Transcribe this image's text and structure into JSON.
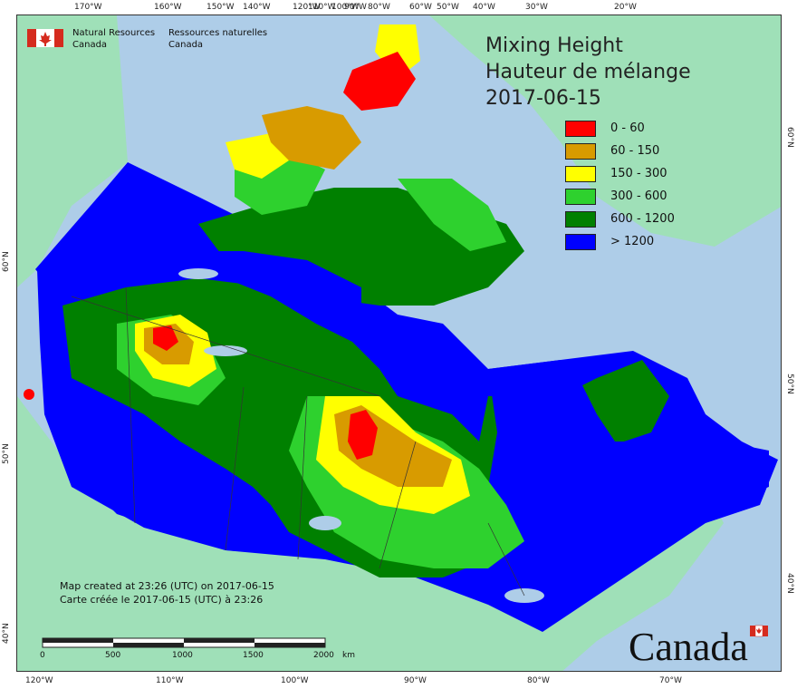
{
  "map": {
    "title_en": "Mixing Height",
    "title_fr": "Hauteur de mélange",
    "date": "2017-06-15",
    "legend": [
      {
        "label": "0 - 60",
        "color": "#ff0000"
      },
      {
        "label": "60 - 150",
        "color": "#d89b00"
      },
      {
        "label": "150 - 300",
        "color": "#ffff00"
      },
      {
        "label": "300 - 600",
        "color": "#2ed12e"
      },
      {
        "label": "600 - 1200",
        "color": "#008000"
      },
      {
        "label": "> 1200",
        "color": "#0000ff"
      }
    ],
    "ocean_color": "#aecde8",
    "land_color": "#9fe0b8"
  },
  "header": {
    "nrcan_en_line1": "Natural Resources",
    "nrcan_en_line2": "Canada",
    "nrcan_fr_line1": "Ressources naturelles",
    "nrcan_fr_line2": "Canada"
  },
  "axes": {
    "top_ticks": [
      "170°W",
      "160°W",
      "150°W",
      "140°W",
      "120°W",
      "110°W",
      "100°W",
      "90°W",
      "80°W",
      "60°W",
      "50°W",
      "40°W",
      "30°W",
      "20°W"
    ],
    "bottom_ticks": [
      "120°W",
      "110°W",
      "100°W",
      "90°W",
      "80°W",
      "70°W"
    ],
    "left_ticks": [
      "60°N",
      "50°N",
      "40°N"
    ],
    "right_ticks": [
      "60°N",
      "50°N",
      "40°N"
    ]
  },
  "credit": {
    "line_en": "Map created at 23:26 (UTC) on 2017-06-15",
    "line_fr": "Carte créée le 2017-06-15 (UTC) à 23:26"
  },
  "scalebar": {
    "labels": [
      "0",
      "500",
      "1000",
      "1500",
      "2000"
    ],
    "unit": "km"
  },
  "wordmark": {
    "text": "Canada"
  }
}
